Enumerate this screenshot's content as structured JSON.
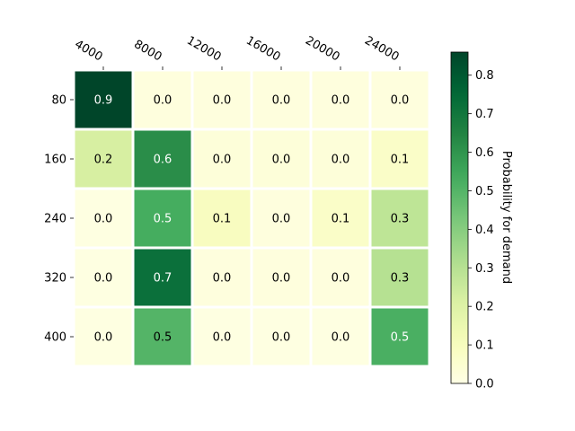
{
  "chart_data": {
    "type": "heatmap",
    "title": "",
    "x_categories": [
      "4000",
      "8000",
      "12000",
      "16000",
      "20000",
      "24000"
    ],
    "y_categories": [
      "80",
      "160",
      "240",
      "320",
      "400"
    ],
    "values": [
      [
        0.86,
        0.02,
        0.02,
        0.02,
        0.02,
        0.02
      ],
      [
        0.22,
        0.62,
        0.03,
        0.03,
        0.03,
        0.07
      ],
      [
        0.01,
        0.53,
        0.09,
        0.02,
        0.07,
        0.28
      ],
      [
        0.01,
        0.72,
        0.02,
        0.02,
        0.02,
        0.3
      ],
      [
        0.01,
        0.5,
        0.01,
        0.01,
        0.01,
        0.52
      ]
    ],
    "cell_labels": [
      [
        "0.9",
        "0.0",
        "0.0",
        "0.0",
        "0.0",
        "0.0"
      ],
      [
        "0.2",
        "0.6",
        "0.0",
        "0.0",
        "0.0",
        "0.1"
      ],
      [
        "0.0",
        "0.5",
        "0.1",
        "0.0",
        "0.1",
        "0.3"
      ],
      [
        "0.0",
        "0.7",
        "0.0",
        "0.0",
        "0.0",
        "0.3"
      ],
      [
        "0.0",
        "0.5",
        "0.0",
        "0.0",
        "0.0",
        "0.5"
      ]
    ],
    "colorbar": {
      "label": "Probability for demand",
      "min": 0.0,
      "max": 0.86,
      "ticks": [
        "0.0",
        "0.1",
        "0.2",
        "0.3",
        "0.4",
        "0.5",
        "0.6",
        "0.7",
        "0.8"
      ],
      "colormap": "YlGn"
    },
    "xlabel": "",
    "ylabel": "",
    "x_axis_position": "top",
    "grid": false
  }
}
